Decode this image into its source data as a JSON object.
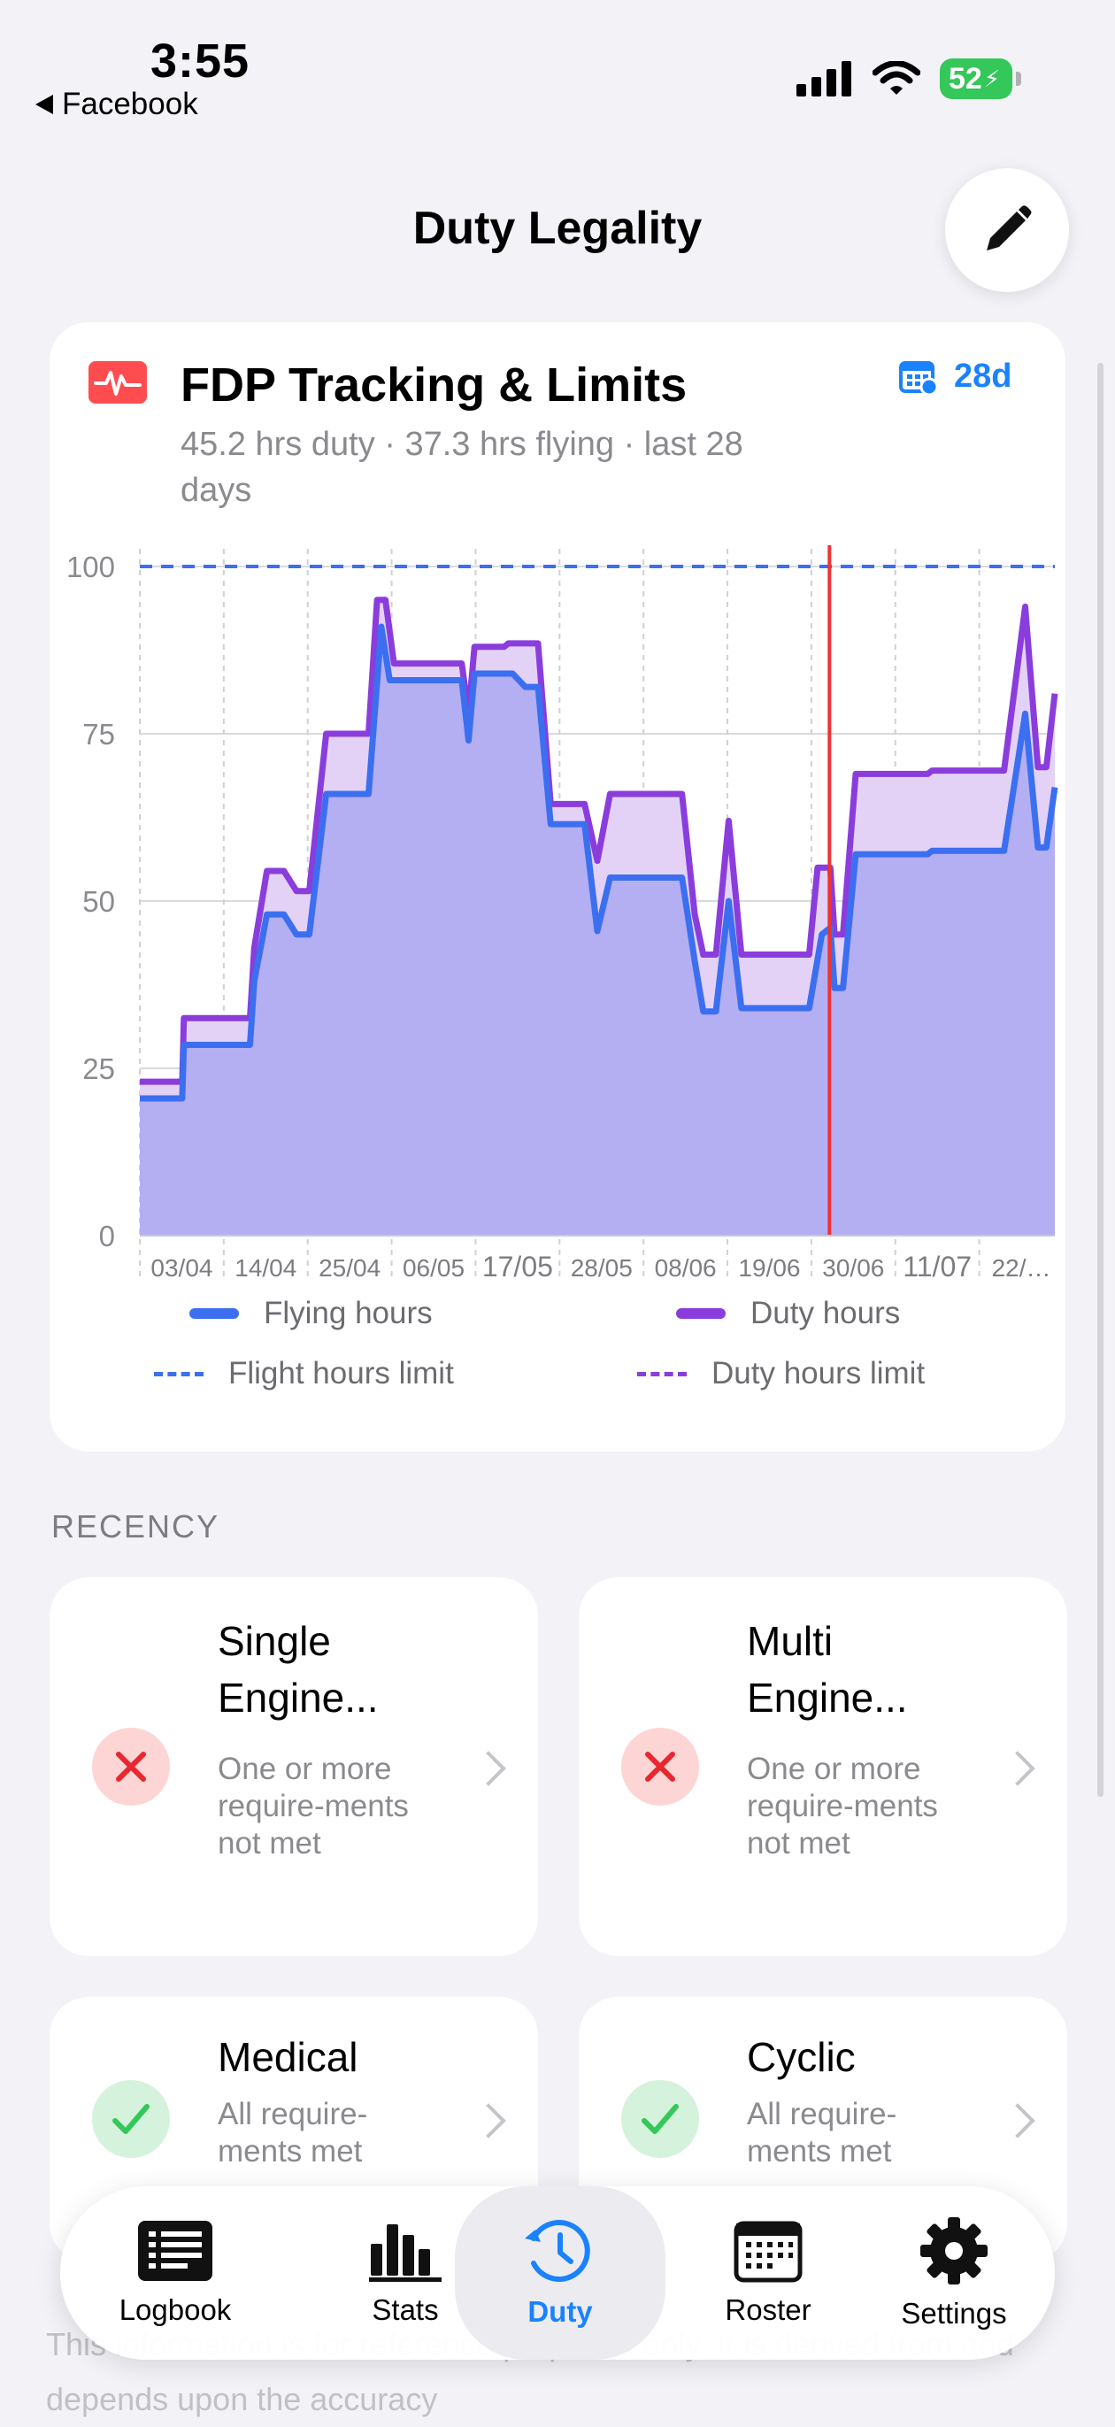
{
  "status_bar": {
    "time": "3:55",
    "back_label": "Facebook",
    "battery": "52"
  },
  "nav": {
    "title": "Duty Legality",
    "edit_icon": "pencil-icon"
  },
  "fdp_card": {
    "title": "FDP Tracking & Limits",
    "subtitle": "45.2 hrs duty · 37.3 hrs flying · last 28 days",
    "range_label": "28d",
    "icon": "heart-rate-icon",
    "range_icon": "calendar-icon"
  },
  "chart_data": {
    "type": "area",
    "x": [
      "03/04",
      "14/04",
      "25/04",
      "06/05",
      "17/05",
      "28/05",
      "08/06",
      "19/06",
      "30/06",
      "11/07",
      "22/…"
    ],
    "y_ticks": [
      0,
      25,
      50,
      75,
      100
    ],
    "ylim": [
      0,
      100
    ],
    "grid": true,
    "legend_position": "bottom",
    "limit_line": 100,
    "current_marker_date": "28/06",
    "series": [
      {
        "name": "Flying hours",
        "color": "#3b6ff0",
        "points": [
          [
            0,
            20.5
          ],
          [
            5,
            20.5
          ],
          [
            5.2,
            28.5
          ],
          [
            13,
            28.5
          ],
          [
            13.5,
            38
          ],
          [
            15,
            48
          ],
          [
            17,
            48
          ],
          [
            18.5,
            45
          ],
          [
            20,
            45
          ],
          [
            22,
            66
          ],
          [
            27,
            66
          ],
          [
            28.5,
            91
          ],
          [
            29.5,
            83
          ],
          [
            38,
            83
          ],
          [
            38.8,
            74
          ],
          [
            39.5,
            84
          ],
          [
            44,
            84
          ],
          [
            45.5,
            82
          ],
          [
            47,
            82
          ],
          [
            48.5,
            61.5
          ],
          [
            52.5,
            61.5
          ],
          [
            54,
            45.5
          ],
          [
            55.5,
            53.5
          ],
          [
            64,
            53.5
          ],
          [
            65.5,
            41
          ],
          [
            66.5,
            33.5
          ],
          [
            68,
            33.5
          ],
          [
            69.5,
            50
          ],
          [
            71,
            34
          ],
          [
            79,
            34
          ],
          [
            80.5,
            45
          ],
          [
            81.5,
            46
          ],
          [
            82,
            37
          ],
          [
            83,
            37
          ],
          [
            84.5,
            57
          ],
          [
            93,
            57
          ],
          [
            93.5,
            57.5
          ],
          [
            102,
            57.5
          ],
          [
            104.5,
            78
          ],
          [
            106,
            58
          ],
          [
            107,
            58
          ],
          [
            108,
            67
          ]
        ]
      },
      {
        "name": "Duty hours",
        "color": "#8a3ddc",
        "points": [
          [
            0,
            23
          ],
          [
            5,
            23
          ],
          [
            5.2,
            32.5
          ],
          [
            13,
            32.5
          ],
          [
            13.5,
            43
          ],
          [
            15,
            54.5
          ],
          [
            17,
            54.5
          ],
          [
            18.5,
            51.5
          ],
          [
            20,
            51.5
          ],
          [
            22,
            75
          ],
          [
            27,
            75
          ],
          [
            28,
            95
          ],
          [
            29,
            95
          ],
          [
            30,
            85.5
          ],
          [
            38,
            85.5
          ],
          [
            38.8,
            78
          ],
          [
            39.5,
            88
          ],
          [
            43,
            88
          ],
          [
            43.5,
            88.5
          ],
          [
            47,
            88.5
          ],
          [
            48.5,
            64.5
          ],
          [
            52.5,
            64.5
          ],
          [
            54,
            56
          ],
          [
            55.5,
            66
          ],
          [
            64,
            66
          ],
          [
            65.5,
            48
          ],
          [
            66.5,
            42
          ],
          [
            68,
            42
          ],
          [
            69.5,
            62
          ],
          [
            71,
            42
          ],
          [
            79,
            42
          ],
          [
            80,
            55
          ],
          [
            81.5,
            55
          ],
          [
            82,
            45
          ],
          [
            83,
            45
          ],
          [
            84.5,
            69
          ],
          [
            93,
            69
          ],
          [
            93.5,
            69.5
          ],
          [
            102,
            69.5
          ],
          [
            104.5,
            94
          ],
          [
            106,
            70
          ],
          [
            107,
            70
          ],
          [
            108,
            81
          ]
        ]
      }
    ],
    "legend": [
      "Flying hours",
      "Duty hours",
      "Flight hours limit",
      "Duty hours limit"
    ]
  },
  "recency": {
    "label": "RECENCY",
    "cards": [
      {
        "title": "Single Engine...",
        "desc": "One or more require-ments not met",
        "status": "fail",
        "icon": "close-icon"
      },
      {
        "title": "Multi Engine...",
        "desc": "One or more require-ments not met",
        "status": "fail",
        "icon": "close-icon"
      },
      {
        "title": "Medical",
        "desc": "All require-ments met",
        "status": "ok",
        "icon": "check-icon"
      },
      {
        "title": "Cyclic",
        "desc": "All require-ments met",
        "status": "ok",
        "icon": "check-icon"
      }
    ]
  },
  "disclaimer": "This information is for reference purposes only. It is derived from and depends upon the accuracy",
  "tabs": [
    {
      "label": "Logbook",
      "icon": "logbook-icon"
    },
    {
      "label": "Stats",
      "icon": "stats-icon"
    },
    {
      "label": "Duty",
      "icon": "duty-clock-icon",
      "active": true
    },
    {
      "label": "Roster",
      "icon": "roster-calendar-icon"
    },
    {
      "label": "Settings",
      "icon": "gear-icon"
    }
  ]
}
